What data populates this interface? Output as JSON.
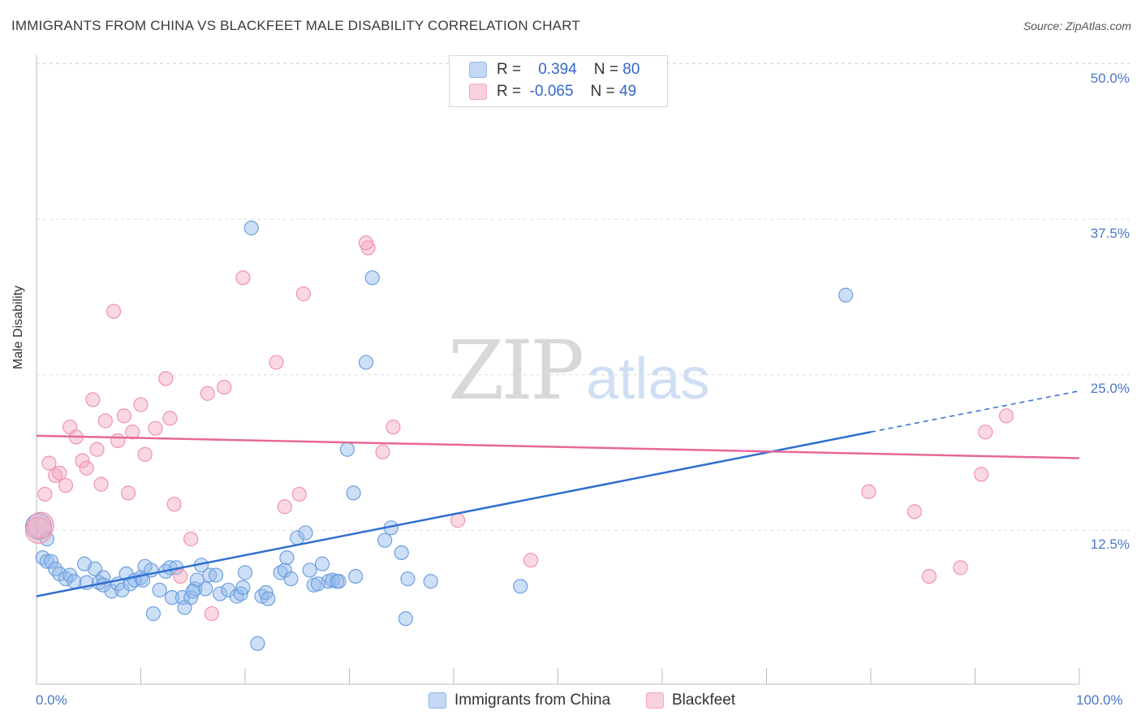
{
  "title": "IMMIGRANTS FROM CHINA VS BLACKFEET MALE DISABILITY CORRELATION CHART",
  "source": "Source: ZipAtlas.com",
  "watermark": {
    "zip": "ZIP",
    "atlas": "atlas"
  },
  "legend": {
    "rows": [
      {
        "r_label": "R =",
        "r_value": "0.394",
        "n_label": "N =",
        "n_value": "80",
        "color": "#8fb8ea"
      },
      {
        "r_label": "R =",
        "r_value": "-0.065",
        "n_label": "N =",
        "n_value": "49",
        "color": "#f3a8bf"
      }
    ]
  },
  "chart_data": {
    "type": "scatter",
    "title": "IMMIGRANTS FROM CHINA VS BLACKFEET MALE DISABILITY CORRELATION CHART",
    "xlabel": "",
    "ylabel": "Male Disability",
    "xlim": [
      0,
      100
    ],
    "ylim": [
      0,
      52
    ],
    "x_tick_labels": [
      "0.0%",
      "100.0%"
    ],
    "y_ticks": [
      12.5,
      25.0,
      37.5,
      50.0
    ],
    "y_tick_labels": [
      "12.5%",
      "25.0%",
      "37.5%",
      "50.0%"
    ],
    "grid": true,
    "legend_position": "bottom",
    "series": [
      {
        "name": "Immigrants from China",
        "color": "#8fb8ea",
        "line_color": "#2f6fd1",
        "trend": {
          "x0": 0,
          "y0": 7.2,
          "x1": 80,
          "y1": 20.4,
          "dashed_to_x": 100,
          "dashed_to_y": 23.7
        },
        "points": [
          [
            0.2,
            12.8
          ],
          [
            0.6,
            10.3
          ],
          [
            1.0,
            10.0
          ],
          [
            1.4,
            10.0
          ],
          [
            1.8,
            9.4
          ],
          [
            2.2,
            9.0
          ],
          [
            2.8,
            8.6
          ],
          [
            3.2,
            8.9
          ],
          [
            3.6,
            8.4
          ],
          [
            4.6,
            9.8
          ],
          [
            4.8,
            8.3
          ],
          [
            5.6,
            9.4
          ],
          [
            6.0,
            8.3
          ],
          [
            6.4,
            8.7
          ],
          [
            7.2,
            7.6
          ],
          [
            7.8,
            8.2
          ],
          [
            8.2,
            7.7
          ],
          [
            8.6,
            9.0
          ],
          [
            9.0,
            8.2
          ],
          [
            9.4,
            8.5
          ],
          [
            10.0,
            8.7
          ],
          [
            10.2,
            8.5
          ],
          [
            10.4,
            9.6
          ],
          [
            11.0,
            9.3
          ],
          [
            11.2,
            5.8
          ],
          [
            11.8,
            7.7
          ],
          [
            12.4,
            9.2
          ],
          [
            12.8,
            9.5
          ],
          [
            13.0,
            7.1
          ],
          [
            13.4,
            9.5
          ],
          [
            14.0,
            7.1
          ],
          [
            14.2,
            6.3
          ],
          [
            14.8,
            7.1
          ],
          [
            15.2,
            7.8
          ],
          [
            15.4,
            8.5
          ],
          [
            15.8,
            9.7
          ],
          [
            16.2,
            7.8
          ],
          [
            16.6,
            8.9
          ],
          [
            17.2,
            8.9
          ],
          [
            17.6,
            7.4
          ],
          [
            18.4,
            7.7
          ],
          [
            19.2,
            7.2
          ],
          [
            19.6,
            7.4
          ],
          [
            19.8,
            7.9
          ],
          [
            20.0,
            9.1
          ],
          [
            20.6,
            36.8
          ],
          [
            21.2,
            3.4
          ],
          [
            21.6,
            7.2
          ],
          [
            22.0,
            7.5
          ],
          [
            22.2,
            7.0
          ],
          [
            23.4,
            9.1
          ],
          [
            23.8,
            9.3
          ],
          [
            24.0,
            10.3
          ],
          [
            24.4,
            8.6
          ],
          [
            25.0,
            11.9
          ],
          [
            25.8,
            12.3
          ],
          [
            26.2,
            9.3
          ],
          [
            26.6,
            8.1
          ],
          [
            27.4,
            9.8
          ],
          [
            28.0,
            8.4
          ],
          [
            28.4,
            8.5
          ],
          [
            28.8,
            8.4
          ],
          [
            29.0,
            8.4
          ],
          [
            29.8,
            19.0
          ],
          [
            30.4,
            15.5
          ],
          [
            30.6,
            8.8
          ],
          [
            31.6,
            26.0
          ],
          [
            32.2,
            32.8
          ],
          [
            33.4,
            11.7
          ],
          [
            34.0,
            12.7
          ],
          [
            35.0,
            10.7
          ],
          [
            35.4,
            5.4
          ],
          [
            35.6,
            8.6
          ],
          [
            37.8,
            8.4
          ],
          [
            46.4,
            8.0
          ],
          [
            77.6,
            31.4
          ],
          [
            27.0,
            8.2
          ],
          [
            15.0,
            7.6
          ],
          [
            6.4,
            8.1
          ],
          [
            1.0,
            11.8
          ]
        ]
      },
      {
        "name": "Blackfeet",
        "color": "#f3a8bf",
        "line_color": "#e7679a",
        "trend": {
          "x0": 0,
          "y0": 20.1,
          "x1": 100,
          "y1": 18.3
        },
        "points": [
          [
            0.8,
            15.4
          ],
          [
            1.2,
            17.9
          ],
          [
            1.8,
            16.9
          ],
          [
            2.2,
            17.1
          ],
          [
            2.8,
            16.1
          ],
          [
            3.2,
            20.8
          ],
          [
            3.8,
            20.0
          ],
          [
            4.4,
            18.1
          ],
          [
            4.8,
            17.5
          ],
          [
            5.4,
            23.0
          ],
          [
            5.8,
            19.0
          ],
          [
            6.2,
            16.2
          ],
          [
            6.6,
            21.3
          ],
          [
            7.4,
            30.1
          ],
          [
            7.8,
            19.7
          ],
          [
            8.4,
            21.7
          ],
          [
            8.8,
            15.5
          ],
          [
            9.2,
            20.4
          ],
          [
            10.0,
            22.6
          ],
          [
            10.4,
            18.6
          ],
          [
            11.4,
            20.7
          ],
          [
            12.4,
            24.7
          ],
          [
            12.8,
            21.5
          ],
          [
            13.2,
            14.6
          ],
          [
            13.8,
            8.8
          ],
          [
            14.8,
            11.8
          ],
          [
            16.4,
            23.5
          ],
          [
            16.8,
            5.8
          ],
          [
            18.0,
            24.0
          ],
          [
            19.8,
            32.8
          ],
          [
            23.0,
            26.0
          ],
          [
            23.8,
            14.4
          ],
          [
            25.2,
            15.4
          ],
          [
            25.6,
            31.5
          ],
          [
            31.8,
            35.2
          ],
          [
            31.6,
            35.6
          ],
          [
            33.2,
            18.8
          ],
          [
            34.2,
            20.8
          ],
          [
            40.4,
            13.3
          ],
          [
            47.4,
            10.1
          ],
          [
            79.8,
            15.6
          ],
          [
            84.2,
            14.0
          ],
          [
            85.6,
            8.8
          ],
          [
            88.6,
            9.5
          ],
          [
            90.6,
            17.0
          ],
          [
            91.0,
            20.4
          ],
          [
            93.0,
            21.7
          ],
          [
            0.2,
            12.5
          ],
          [
            0.4,
            12.9
          ]
        ]
      }
    ]
  },
  "bottom_legend": [
    {
      "label": "Immigrants from China",
      "color": "#8fb8ea"
    },
    {
      "label": "Blackfeet",
      "color": "#f3a8bf"
    }
  ]
}
